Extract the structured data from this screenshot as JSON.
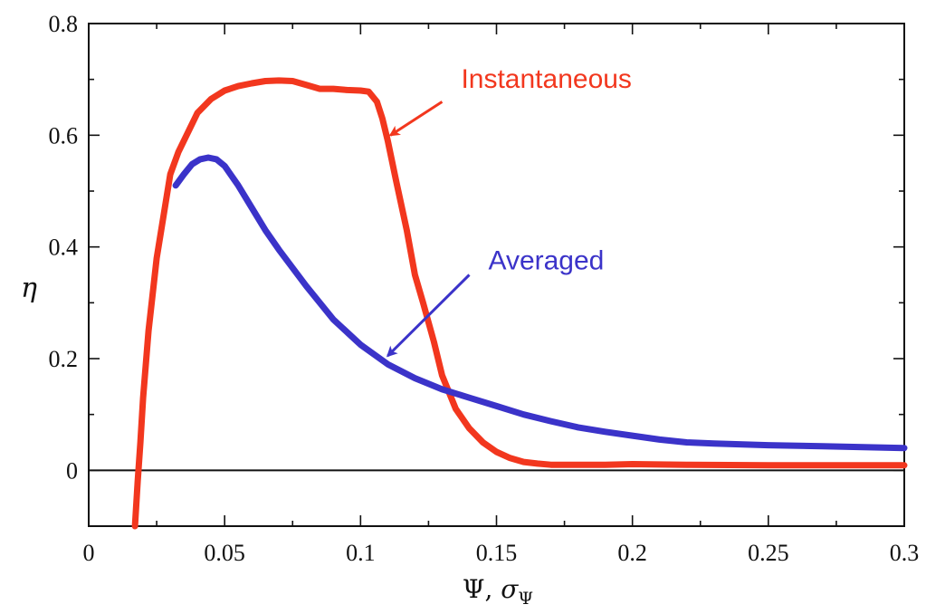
{
  "chart_data": {
    "type": "line",
    "title": "",
    "xlabel_main": "Ψ, ",
    "xlabel_sigma": "σ",
    "xlabel_sub": "Ψ",
    "ylabel": "η",
    "xlim": [
      0,
      0.3
    ],
    "ylim": [
      -0.1,
      0.8
    ],
    "x_ticks": [
      0,
      0.05,
      0.1,
      0.15,
      0.2,
      0.25,
      0.3
    ],
    "x_tick_labels": [
      "0",
      "0.05",
      "0.1",
      "0.15",
      "0.2",
      "0.25",
      "0.3"
    ],
    "y_ticks": [
      0,
      0.2,
      0.4,
      0.6,
      0.8
    ],
    "y_tick_labels": [
      "0",
      "0.2",
      "0.4",
      "0.6",
      "0.8"
    ],
    "zero_line": true,
    "grid": false,
    "legend": "none",
    "series": [
      {
        "name": "Instantaneous",
        "color": "#f2371e",
        "x": [
          0.017,
          0.018,
          0.019,
          0.02,
          0.022,
          0.025,
          0.028,
          0.03,
          0.033,
          0.037,
          0.04,
          0.045,
          0.05,
          0.055,
          0.06,
          0.065,
          0.07,
          0.075,
          0.08,
          0.085,
          0.09,
          0.095,
          0.1,
          0.103,
          0.106,
          0.108,
          0.11,
          0.113,
          0.117,
          0.12,
          0.123,
          0.127,
          0.13,
          0.135,
          0.14,
          0.145,
          0.15,
          0.155,
          0.16,
          0.165,
          0.17,
          0.175,
          0.18,
          0.19,
          0.2,
          0.22,
          0.25,
          0.3
        ],
        "values": [
          -0.1,
          -0.02,
          0.05,
          0.13,
          0.25,
          0.38,
          0.47,
          0.53,
          0.57,
          0.61,
          0.64,
          0.665,
          0.68,
          0.688,
          0.693,
          0.697,
          0.698,
          0.697,
          0.69,
          0.683,
          0.683,
          0.681,
          0.68,
          0.678,
          0.66,
          0.63,
          0.59,
          0.52,
          0.43,
          0.35,
          0.3,
          0.23,
          0.17,
          0.11,
          0.075,
          0.05,
          0.033,
          0.022,
          0.015,
          0.012,
          0.01,
          0.01,
          0.01,
          0.01,
          0.011,
          0.01,
          0.009,
          0.009
        ]
      },
      {
        "name": "Averaged",
        "color": "#3b33c9",
        "x": [
          0.032,
          0.035,
          0.038,
          0.041,
          0.044,
          0.047,
          0.05,
          0.055,
          0.06,
          0.065,
          0.07,
          0.08,
          0.09,
          0.1,
          0.11,
          0.12,
          0.13,
          0.14,
          0.15,
          0.16,
          0.17,
          0.18,
          0.19,
          0.2,
          0.21,
          0.22,
          0.23,
          0.25,
          0.27,
          0.3
        ],
        "values": [
          0.51,
          0.53,
          0.548,
          0.557,
          0.56,
          0.557,
          0.545,
          0.51,
          0.47,
          0.43,
          0.395,
          0.33,
          0.27,
          0.225,
          0.19,
          0.165,
          0.145,
          0.13,
          0.115,
          0.1,
          0.088,
          0.077,
          0.069,
          0.062,
          0.055,
          0.05,
          0.048,
          0.045,
          0.043,
          0.04
        ]
      }
    ],
    "annotations": [
      {
        "text": "Instantaneous",
        "color": "#f2371e",
        "text_x": 0.137,
        "text_y": 0.685,
        "arrow_from": [
          0.13,
          0.66
        ],
        "arrow_to": [
          0.111,
          0.6
        ]
      },
      {
        "text": "Averaged",
        "color": "#3b33c9",
        "text_x": 0.147,
        "text_y": 0.36,
        "arrow_from": [
          0.14,
          0.35
        ],
        "arrow_to": [
          0.11,
          0.205
        ]
      }
    ]
  }
}
